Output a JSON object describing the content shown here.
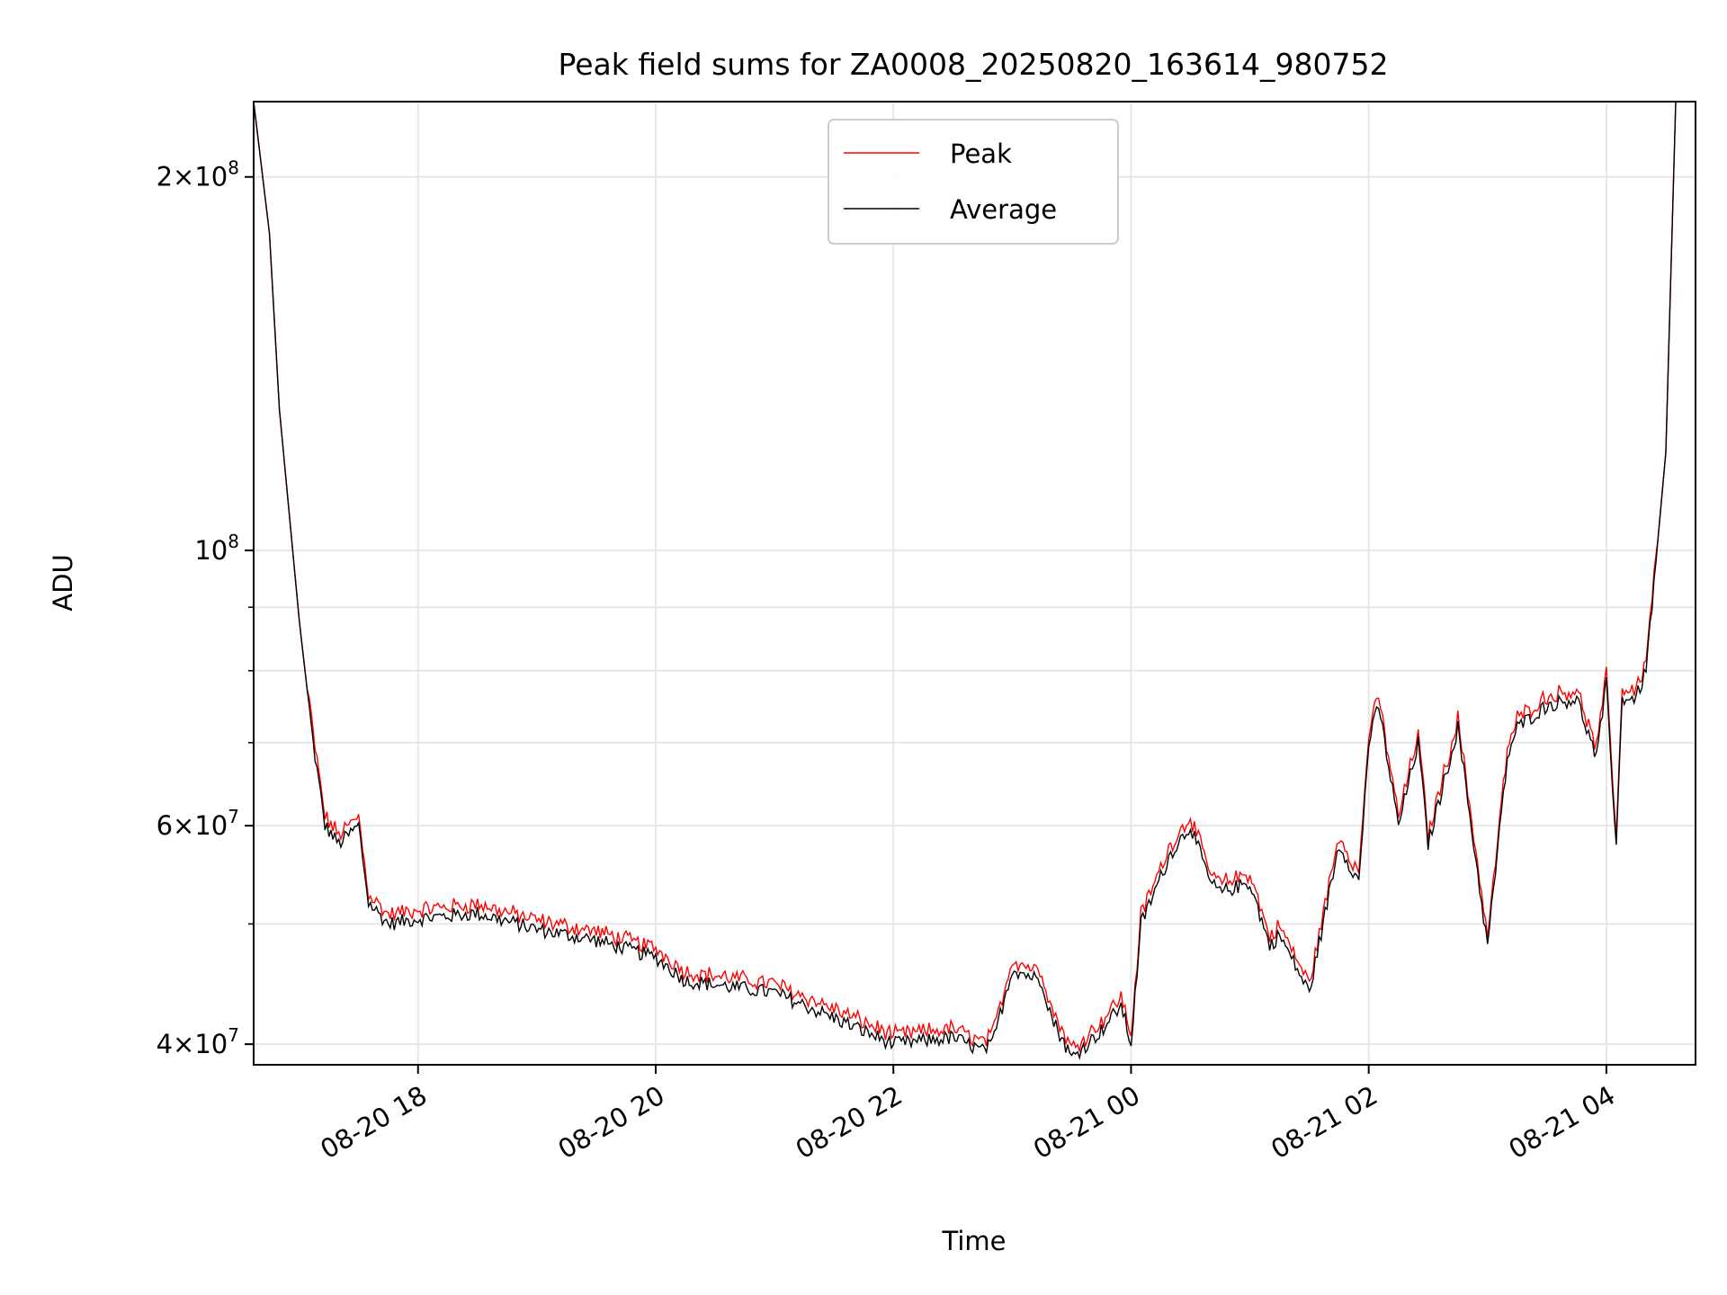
{
  "chart_data": {
    "type": "line",
    "title": "Peak field sums for ZA0008_20250820_163614_980752",
    "xlabel": "Time",
    "ylabel": "ADU",
    "y_scale": "log",
    "xlim": [
      "2025-08-20 16:37",
      "2025-08-21 04:45"
    ],
    "ylim": [
      38500000,
      230000000
    ],
    "grid": true,
    "legend_position": "top-center",
    "x_ticks": [
      {
        "value": "2025-08-20 18:00",
        "label": "08-20 18"
      },
      {
        "value": "2025-08-20 20:00",
        "label": "08-20 20"
      },
      {
        "value": "2025-08-20 22:00",
        "label": "08-20 22"
      },
      {
        "value": "2025-08-21 00:00",
        "label": "08-21 00"
      },
      {
        "value": "2025-08-21 02:00",
        "label": "08-21 02"
      },
      {
        "value": "2025-08-21 04:00",
        "label": "08-21 04"
      }
    ],
    "y_major_ticks": [
      {
        "value": 40000000,
        "base": "4",
        "exp": "7"
      },
      {
        "value": 60000000,
        "base": "6",
        "exp": "7"
      },
      {
        "value": 100000000,
        "base": "",
        "exp": "8"
      },
      {
        "value": 200000000,
        "base": "2",
        "exp": "8"
      }
    ],
    "y_minor_ticks": [
      50000000,
      70000000,
      80000000,
      90000000
    ],
    "series": [
      {
        "name": "Peak",
        "color": "#ff0000"
      },
      {
        "name": "Average",
        "color": "#000000"
      }
    ],
    "average": {
      "x": [
        "2025-08-20 16:37",
        "2025-08-20 16:45",
        "2025-08-20 16:50",
        "2025-08-20 17:00",
        "2025-08-20 17:07",
        "2025-08-20 17:13",
        "2025-08-20 17:20",
        "2025-08-20 17:30",
        "2025-08-20 17:35",
        "2025-08-20 17:40",
        "2025-08-20 17:45",
        "2025-08-20 18:00",
        "2025-08-20 18:30",
        "2025-08-20 19:00",
        "2025-08-20 19:30",
        "2025-08-20 20:00",
        "2025-08-20 20:15",
        "2025-08-20 21:00",
        "2025-08-20 21:30",
        "2025-08-20 22:00",
        "2025-08-20 22:30",
        "2025-08-20 22:45",
        "2025-08-20 22:50",
        "2025-08-20 23:00",
        "2025-08-20 23:15",
        "2025-08-20 23:20",
        "2025-08-20 23:30",
        "2025-08-20 23:45",
        "2025-08-20 23:55",
        "2025-08-21 00:00",
        "2025-08-21 00:05",
        "2025-08-21 00:20",
        "2025-08-21 00:30",
        "2025-08-21 00:40",
        "2025-08-21 00:45",
        "2025-08-21 01:00",
        "2025-08-21 01:10",
        "2025-08-21 01:15",
        "2025-08-21 01:30",
        "2025-08-21 01:45",
        "2025-08-21 01:55",
        "2025-08-21 02:00",
        "2025-08-21 02:05",
        "2025-08-21 02:15",
        "2025-08-21 02:25",
        "2025-08-21 02:30",
        "2025-08-21 02:45",
        "2025-08-21 03:00",
        "2025-08-21 03:10",
        "2025-08-21 03:15",
        "2025-08-21 03:30",
        "2025-08-21 03:45",
        "2025-08-21 03:55",
        "2025-08-21 04:00",
        "2025-08-21 04:05",
        "04:08",
        "2025-08-21 04:15",
        "2025-08-21 04:20",
        "2025-08-21 04:30",
        "2025-08-21 04:35"
      ],
      "y": [
        230000000,
        180000000,
        130000000,
        88000000,
        70000000,
        60000000,
        58000000,
        60000000,
        52000000,
        51000000,
        50000000,
        50500000,
        51000000,
        49500000,
        48500000,
        47000000,
        45000000,
        44000000,
        42000000,
        40000000,
        40500000,
        39500000,
        40000000,
        46000000,
        45000000,
        42000000,
        39000000,
        41000000,
        43000000,
        40000000,
        50000000,
        57000000,
        60000000,
        54000000,
        53000000,
        54000000,
        48000000,
        49000000,
        44000000,
        58000000,
        54000000,
        70000000,
        75000000,
        60000000,
        70000000,
        58000000,
        72000000,
        48000000,
        68000000,
        72000000,
        75000000,
        76000000,
        68000000,
        78000000,
        58000000,
        76000000,
        76000000,
        80000000,
        120000000,
        230000000
      ]
    }
  }
}
